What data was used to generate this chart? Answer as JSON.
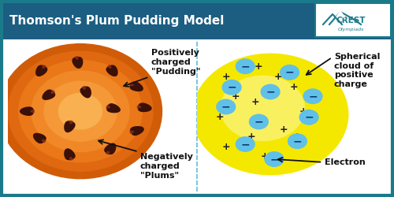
{
  "title": "Thomson's Plum Pudding Model",
  "title_bg": "#1b5e82",
  "title_color": "#ffffff",
  "bg_color": "#ffffff",
  "border_color": "#1a7a8a",
  "divider_color": "#7ec8e3",
  "left_label1": "Positively\ncharged\n\"Pudding\"",
  "left_label2": "Negatively\ncharged\n\"Plums\"",
  "right_label1": "Spherical\ncloud of\npositive\ncharge",
  "right_label2": "Electron",
  "pudding_color_outer": "#e8680a",
  "pudding_color_ring1": "#ea7515",
  "pudding_color_ring2": "#f08030",
  "pudding_color_inner": "#f5a050",
  "plum_color_dark": "#3a1008",
  "plum_color_mid": "#6a2010",
  "sphere_fill": "#f5e800",
  "sphere_fill_inner": "#f9f060",
  "sphere_border": "#999999",
  "electron_color": "#60c0e8",
  "electron_border": "#2080b0",
  "plus_color": "#222222",
  "arrow_color": "#111111",
  "font_size_title": 11,
  "font_size_label": 8,
  "crest_color": "#1a7a8a"
}
